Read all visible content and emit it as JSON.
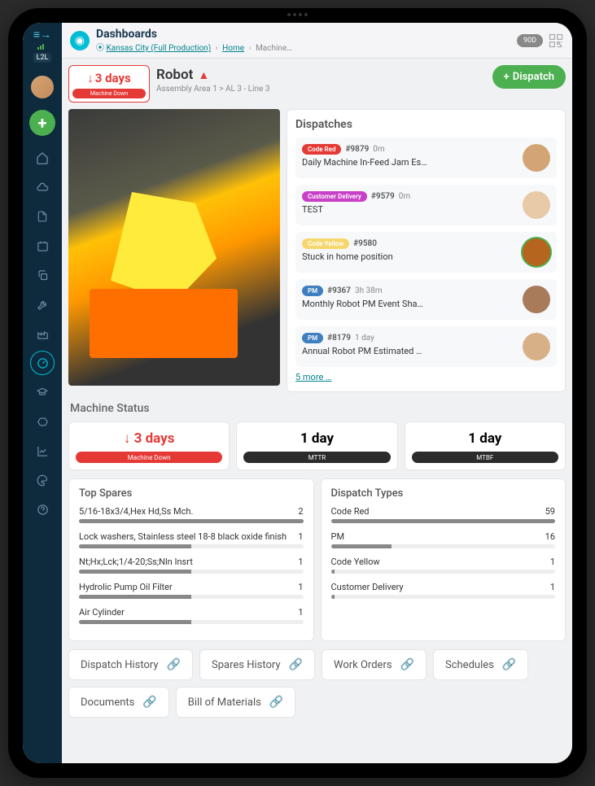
{
  "header": {
    "title": "Dashboards",
    "site_link": "Kansas City (Full Production)",
    "home_link": "Home",
    "current": "Machine…",
    "timerange": "90D",
    "logo_text": "L2L"
  },
  "machine": {
    "status_small": {
      "value": "3 days",
      "label": "Machine Down",
      "color": "#e53935"
    },
    "name": "Robot",
    "path": "Assembly Area 1  >  AL 3 - Line 3",
    "dispatch_btn": "Dispatch"
  },
  "dispatch_panel": {
    "title": "Dispatches",
    "items": [
      {
        "tag": "Code Red",
        "tag_color": "#e53935",
        "id": "#9879",
        "time": "0m",
        "desc": "Daily Machine In-Feed Jam Es…",
        "avatar": "#d4a574",
        "ring": false
      },
      {
        "tag": "Customer Delivery",
        "tag_color": "#c840c8",
        "id": "#9579",
        "time": "0m",
        "desc": "TEST",
        "avatar": "#e8c9a8",
        "ring": false
      },
      {
        "tag": "Code Yellow",
        "tag_color": "#f5d76e",
        "id": "#9580",
        "time": "",
        "desc": "Stuck in home position",
        "avatar": "#b5651d",
        "ring": true
      },
      {
        "tag": "PM",
        "tag_color": "#3f7fbf",
        "id": "#9367",
        "time": "3h 38m",
        "desc": "Monthly Robot PM Event Sha…",
        "avatar": "#a87c5a",
        "ring": false
      },
      {
        "tag": "PM",
        "tag_color": "#3f7fbf",
        "id": "#8179",
        "time": "1 day",
        "desc": "Annual Robot PM Estimated …",
        "avatar": "#d8b088",
        "ring": false
      }
    ],
    "more": "5 more …"
  },
  "machine_status": {
    "title": "Machine Status",
    "cards": [
      {
        "value": "3 days",
        "label": "Machine Down",
        "variant": "red",
        "arrow": true
      },
      {
        "value": "1 day",
        "label": "MTTR",
        "variant": "dark",
        "arrow": false
      },
      {
        "value": "1 day",
        "label": "MTBF",
        "variant": "dark",
        "arrow": false
      }
    ]
  },
  "top_spares": {
    "title": "Top Spares",
    "max": 2,
    "items": [
      {
        "name": "5/16-18x3/4,Hex Hd,Ss Mch.",
        "count": 2
      },
      {
        "name": "Lock washers, Stainless steel 18-8 black oxide finish",
        "count": 1
      },
      {
        "name": "Nt;Hx;Lck;1/4-20;Ss;Nln Insrt",
        "count": 1
      },
      {
        "name": "Hydrolic Pump Oil Filter",
        "count": 1
      },
      {
        "name": "Air Cylinder",
        "count": 1
      }
    ]
  },
  "dispatch_types": {
    "title": "Dispatch Types",
    "max": 59,
    "items": [
      {
        "name": "Code Red",
        "count": 59
      },
      {
        "name": "PM",
        "count": 16
      },
      {
        "name": "Code Yellow",
        "count": 1
      },
      {
        "name": "Customer Delivery",
        "count": 1
      }
    ]
  },
  "link_buttons": [
    "Dispatch History",
    "Spares History",
    "Work Orders",
    "Schedules",
    "Documents",
    "Bill of Materials"
  ]
}
